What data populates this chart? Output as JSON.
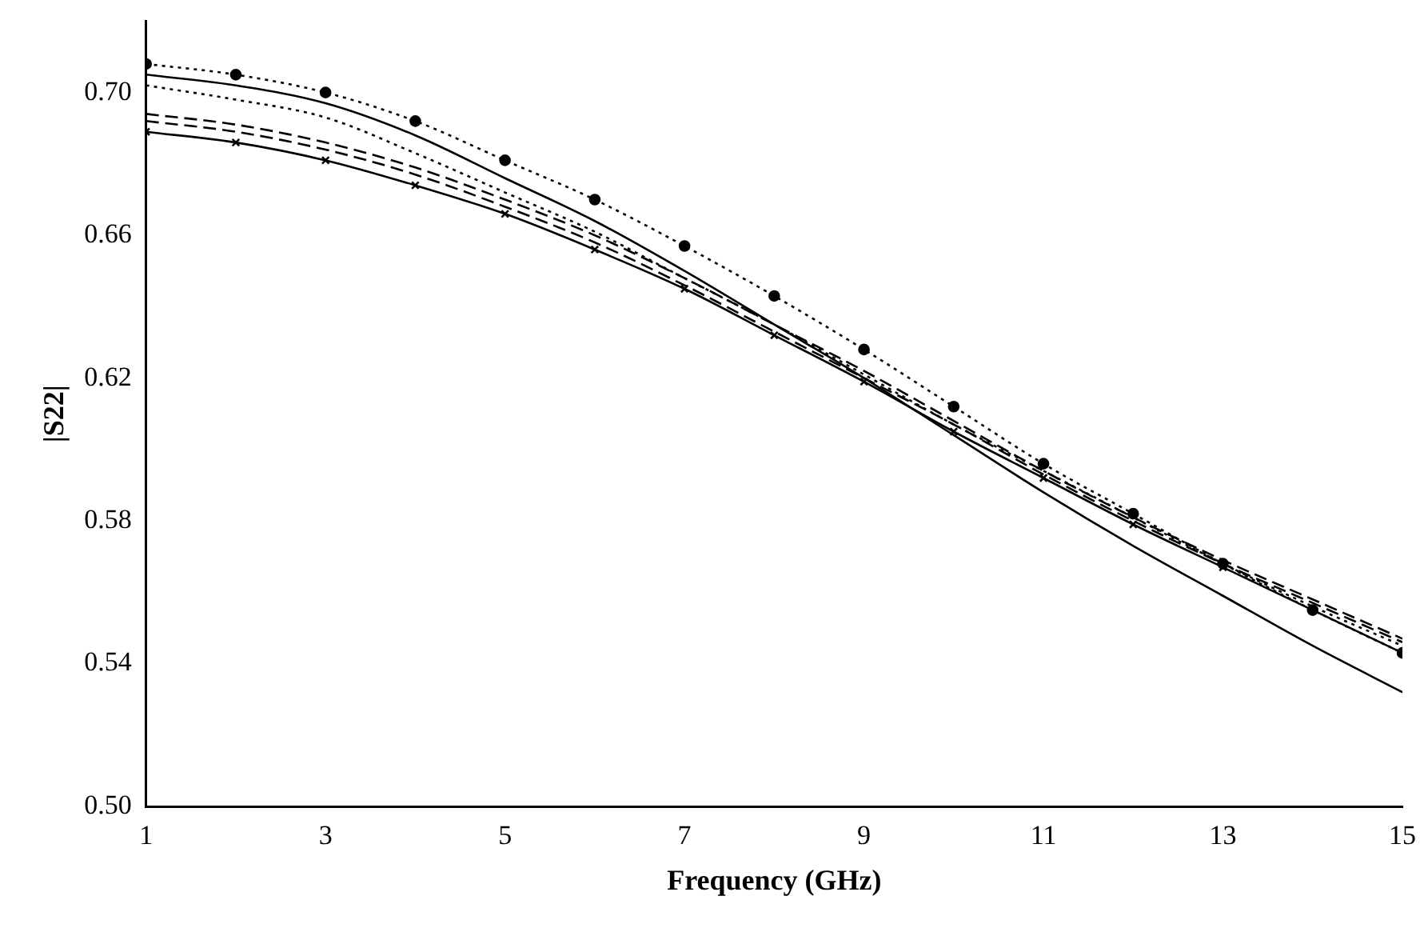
{
  "chart_data": {
    "type": "line",
    "xlabel": "Frequency (GHz)",
    "ylabel": "|S22|",
    "grid": false,
    "legend": false,
    "xlim": [
      1,
      15
    ],
    "xticks": [
      1,
      3,
      5,
      7,
      9,
      11,
      13,
      15
    ],
    "ylim": [
      0.5,
      0.72
    ],
    "yticks": [
      {
        "value": 0.5,
        "label": "0.50"
      },
      0.54,
      0.58,
      0.62,
      0.66,
      {
        "value": 0.7,
        "label": "0.70"
      }
    ],
    "x": [
      1,
      2,
      3,
      4,
      5,
      6,
      7,
      8,
      9,
      10,
      11,
      12,
      13,
      14,
      15
    ],
    "series": [
      {
        "color": "#000000",
        "marker": "circle",
        "line_style": "dotted",
        "values": [
          0.708,
          0.705,
          0.7,
          0.692,
          0.681,
          0.67,
          0.657,
          0.643,
          0.628,
          0.612,
          0.596,
          0.582,
          0.568,
          0.555,
          0.543
        ]
      },
      {
        "color": "#000000",
        "marker": "none",
        "line_style": "solid",
        "values": [
          0.705,
          0.702,
          0.697,
          0.688,
          0.676,
          0.664,
          0.65,
          0.635,
          0.62,
          0.604,
          0.588,
          0.573,
          0.559,
          0.545,
          0.532
        ]
      },
      {
        "color": "#000000",
        "marker": "none",
        "line_style": "dotted",
        "values": [
          0.702,
          0.698,
          0.693,
          0.683,
          0.672,
          0.661,
          0.648,
          0.635,
          0.621,
          0.607,
          0.594,
          0.581,
          0.568,
          0.556,
          0.545
        ]
      },
      {
        "color": "#000000",
        "marker": "none",
        "line_style": "dashed",
        "values": [
          0.694,
          0.691,
          0.686,
          0.679,
          0.67,
          0.66,
          0.648,
          0.635,
          0.622,
          0.608,
          0.594,
          0.581,
          0.569,
          0.558,
          0.547
        ]
      },
      {
        "color": "#000000",
        "marker": "none",
        "line_style": "dashed",
        "values": [
          0.692,
          0.689,
          0.684,
          0.677,
          0.668,
          0.658,
          0.646,
          0.633,
          0.62,
          0.607,
          0.593,
          0.58,
          0.568,
          0.557,
          0.546
        ]
      },
      {
        "color": "#000000",
        "marker": "cross",
        "line_style": "solid",
        "values": [
          0.689,
          0.686,
          0.681,
          0.674,
          0.666,
          0.656,
          0.645,
          0.632,
          0.619,
          0.605,
          0.592,
          0.579,
          0.567,
          0.555,
          0.543
        ]
      }
    ]
  }
}
